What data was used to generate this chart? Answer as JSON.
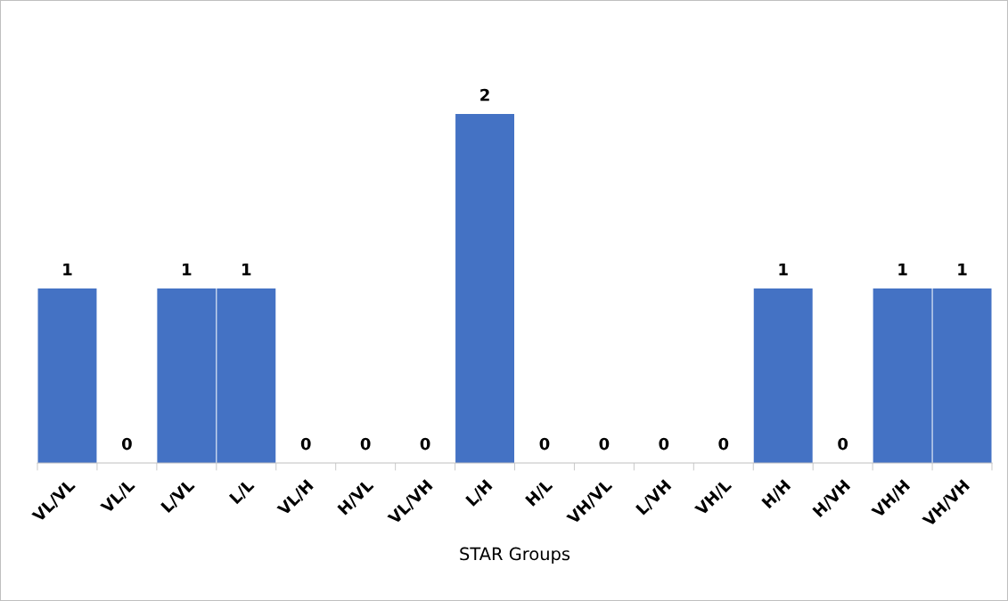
{
  "chart_data": {
    "type": "bar",
    "xlabel": "STAR Groups",
    "categories": [
      "VL/VL",
      "VL/L",
      "L/VL",
      "L/L",
      "VL/H",
      "H/VL",
      "VL/VH",
      "L/H",
      "H/L",
      "VH/VL",
      "L/VH",
      "VH/L",
      "H/H",
      "H/VH",
      "VH/H",
      "VH/VH"
    ],
    "values": [
      1,
      0,
      1,
      1,
      0,
      0,
      0,
      2,
      0,
      0,
      0,
      0,
      1,
      0,
      1,
      1
    ],
    "color": "#4472c4",
    "data_labels": true,
    "grid": false,
    "legend": false
  }
}
